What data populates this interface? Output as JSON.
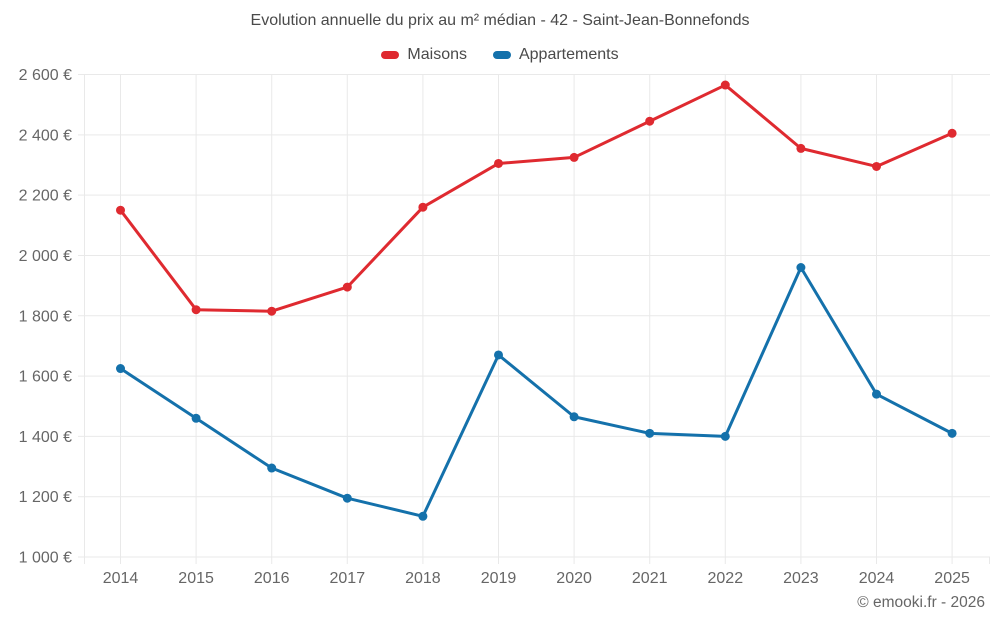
{
  "header": {
    "title": "Evolution annuelle du prix au m² médian - 42 - Saint-Jean-Bonnefonds"
  },
  "legend": [
    {
      "label": "Maisons",
      "color": "#df2a30"
    },
    {
      "label": "Appartements",
      "color": "#1471ab"
    }
  ],
  "footer": {
    "copyright": "© emooki.fr - 2026"
  },
  "chart_data": {
    "type": "line",
    "title": "Evolution annuelle du prix au m² médian - 42 - Saint-Jean-Bonnefonds",
    "xlabel": "",
    "ylabel": "",
    "x": [
      2014,
      2015,
      2016,
      2017,
      2018,
      2019,
      2020,
      2021,
      2022,
      2023,
      2024,
      2025
    ],
    "series": [
      {
        "name": "Maisons",
        "color": "#df2a30",
        "values": [
          2150,
          1820,
          1815,
          1895,
          2160,
          2305,
          2325,
          2445,
          2565,
          2355,
          2295,
          2405
        ]
      },
      {
        "name": "Appartements",
        "color": "#1471ab",
        "values": [
          1625,
          1460,
          1295,
          1195,
          1135,
          1670,
          1465,
          1410,
          1400,
          1960,
          1540,
          1410
        ]
      }
    ],
    "ylim": [
      1000,
      2600
    ],
    "y_tick_step": 200,
    "y_tick_suffix": " €",
    "grid": true,
    "legend_position": "top",
    "colors": {
      "grid": "#e9e9e9",
      "axis_text": "#666666",
      "title_text": "#4a4a4a"
    }
  }
}
